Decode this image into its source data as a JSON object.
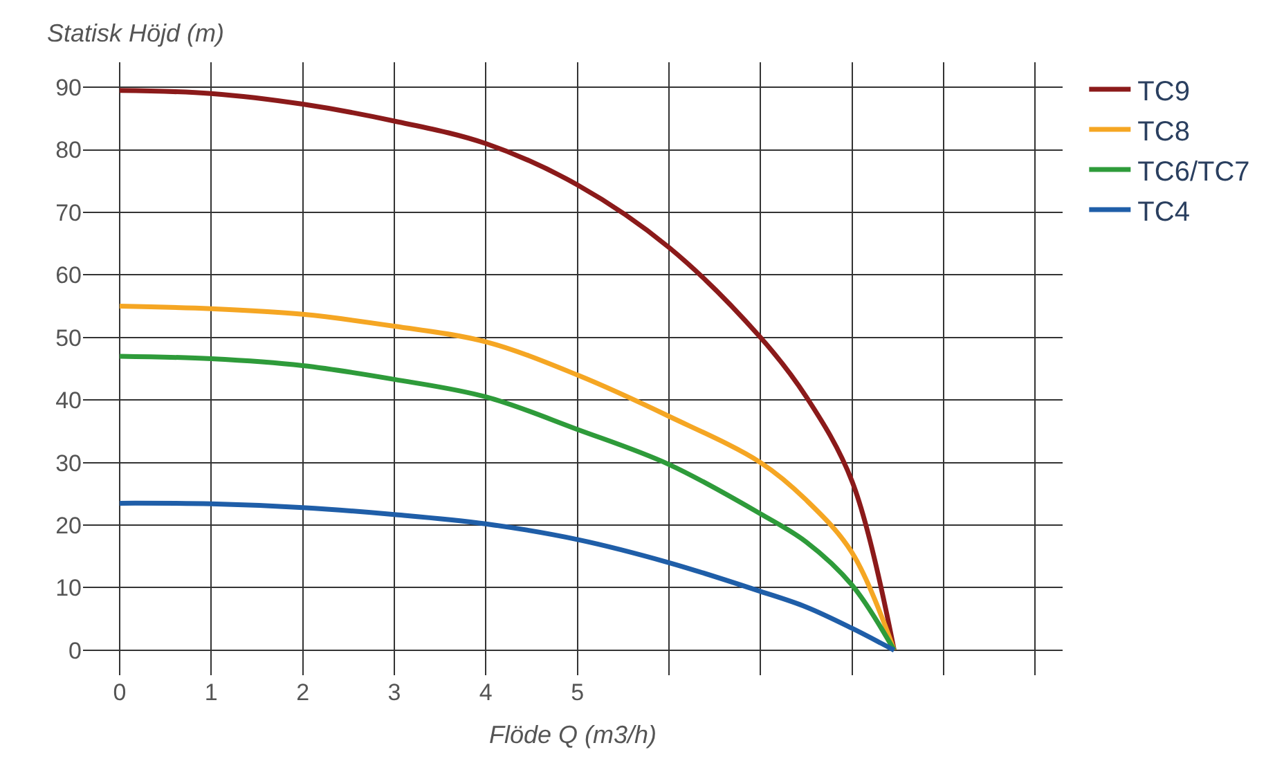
{
  "chart_data": {
    "type": "line",
    "ylabel": "Statisk Höjd (m)",
    "xlabel": "Flöde Q (m3/h)",
    "x": [
      0,
      1,
      2,
      3,
      4,
      5,
      6,
      7,
      7.5,
      8,
      8.46
    ],
    "series": [
      {
        "name": "TC9",
        "color": "#8b1a1a",
        "values": [
          89.5,
          89,
          87.3,
          84.6,
          81,
          74.4,
          64.4,
          50,
          40.5,
          27,
          0
        ]
      },
      {
        "name": "TC8",
        "color": "#f5a623",
        "values": [
          55,
          54.6,
          53.7,
          51.8,
          49.3,
          44,
          37.4,
          30,
          24,
          15.6,
          0
        ]
      },
      {
        "name": "TC6/TC7",
        "color": "#2e9b3a",
        "values": [
          47,
          46.6,
          45.5,
          43.3,
          40.5,
          35.3,
          29.7,
          21.8,
          17.3,
          10.4,
          0
        ]
      },
      {
        "name": "TC4",
        "color": "#1f5ea8",
        "values": [
          23.5,
          23.4,
          22.8,
          21.7,
          20.2,
          17.7,
          14,
          9.4,
          6.9,
          3.5,
          0
        ]
      }
    ],
    "xlim": [
      -0.4,
      10.3
    ],
    "ylim": [
      -4,
      94
    ],
    "xticks": [
      0,
      1,
      2,
      3,
      4,
      5,
      {
        "value": 6,
        "label": null
      },
      {
        "value": 7,
        "label": null
      },
      {
        "value": 8,
        "label": null
      },
      {
        "value": 9,
        "label": null
      },
      {
        "value": 10,
        "label": null
      }
    ],
    "yticks": [
      0,
      10,
      20,
      30,
      40,
      50,
      60,
      70,
      80,
      90
    ],
    "grid": true,
    "legend": "right",
    "marker": "none",
    "line_style": "solid"
  }
}
